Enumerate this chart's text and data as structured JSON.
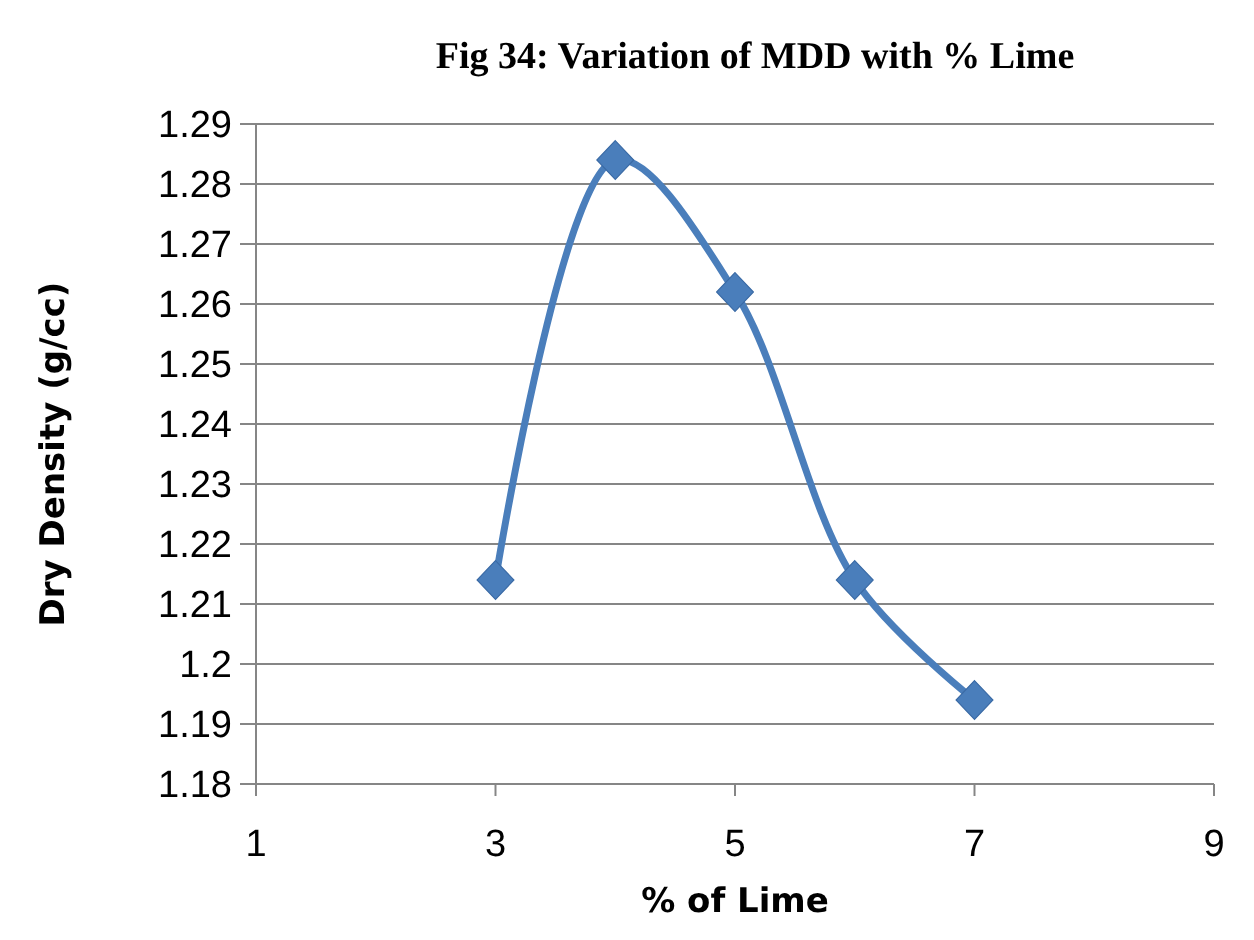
{
  "chart_data": {
    "type": "line",
    "title": "Fig 34: Variation of MDD with % Lime",
    "xlabel": "% of Lime",
    "ylabel": "Dry Density (g/cc)",
    "x": [
      3,
      4,
      5,
      6,
      7
    ],
    "series": [
      {
        "color": "#4a7ebb",
        "values": [
          1.214,
          1.284,
          1.262,
          1.214,
          1.194
        ]
      }
    ],
    "xlim": [
      1,
      9
    ],
    "xticks": [
      1,
      3,
      5,
      7,
      9
    ],
    "ylim": [
      1.18,
      1.29
    ],
    "yticks": [
      1.18,
      1.19,
      1.2,
      1.21,
      1.22,
      1.23,
      1.24,
      1.25,
      1.26,
      1.27,
      1.28,
      1.29
    ],
    "grid": "y",
    "marker": "diamond",
    "line_style": "solid"
  }
}
